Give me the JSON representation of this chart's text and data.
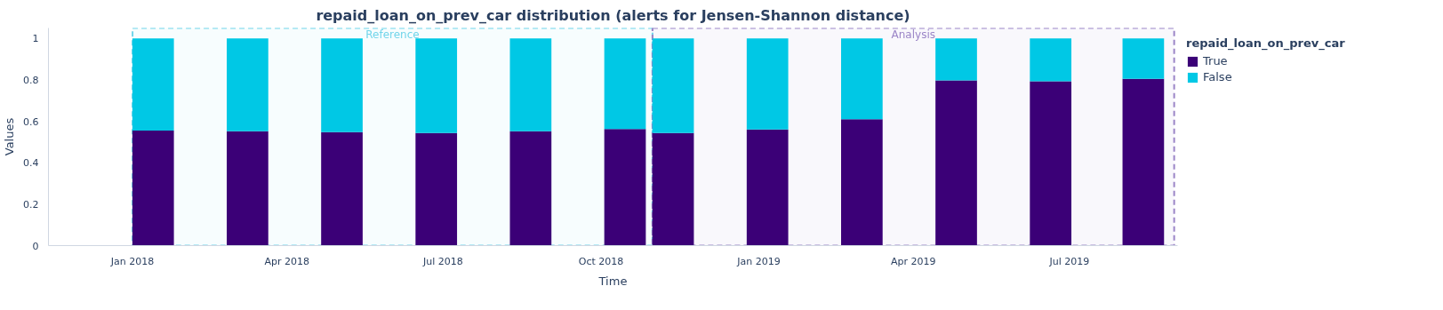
{
  "chart_data": {
    "type": "bar",
    "stacked": true,
    "title": "repaid_loan_on_prev_car distribution (alerts for Jensen-Shannon distance)",
    "xlabel": "Time",
    "ylabel": "Values",
    "legend_title": "repaid_loan_on_prev_car",
    "x": [
      "2018-01-13",
      "2018-03-09",
      "2018-05-03",
      "2018-06-27",
      "2018-08-21",
      "2018-10-15",
      "2018-11-12",
      "2019-01-06",
      "2019-03-02",
      "2019-04-26",
      "2019-06-20",
      "2019-08-13"
    ],
    "series": [
      {
        "name": "True",
        "color": "#3b0077",
        "values": [
          0.555,
          0.552,
          0.547,
          0.543,
          0.552,
          0.562,
          0.543,
          0.56,
          0.61,
          0.797,
          0.793,
          0.805
        ]
      },
      {
        "name": "False",
        "color": "#00c8e5",
        "values": [
          0.445,
          0.448,
          0.453,
          0.457,
          0.448,
          0.438,
          0.457,
          0.44,
          0.39,
          0.203,
          0.207,
          0.195
        ]
      }
    ],
    "xlim": [
      "2017-11-13",
      "2019-09-02"
    ],
    "xticks": [
      {
        "value": "2018-01-01",
        "label": "Jan 2018"
      },
      {
        "value": "2018-04-01",
        "label": "Apr 2018"
      },
      {
        "value": "2018-07-01",
        "label": "Jul 2018"
      },
      {
        "value": "2018-10-01",
        "label": "Oct 2018"
      },
      {
        "value": "2019-01-01",
        "label": "Jan 2019"
      },
      {
        "value": "2019-04-01",
        "label": "Apr 2019"
      },
      {
        "value": "2019-07-01",
        "label": "Jul 2019"
      }
    ],
    "ylim": [
      0,
      1.05
    ],
    "yticks": [
      0,
      0.2,
      0.4,
      0.6,
      0.8,
      1
    ],
    "bands": [
      {
        "axis": "x",
        "from": "2018-01-01",
        "to": "2018-10-31",
        "label": "Reference",
        "color": "#72d5ea"
      },
      {
        "axis": "x",
        "from": "2018-10-31",
        "to": "2019-08-31",
        "label": "Analysis",
        "color": "#9b85c7"
      }
    ],
    "grid": false,
    "legend": "top right"
  }
}
